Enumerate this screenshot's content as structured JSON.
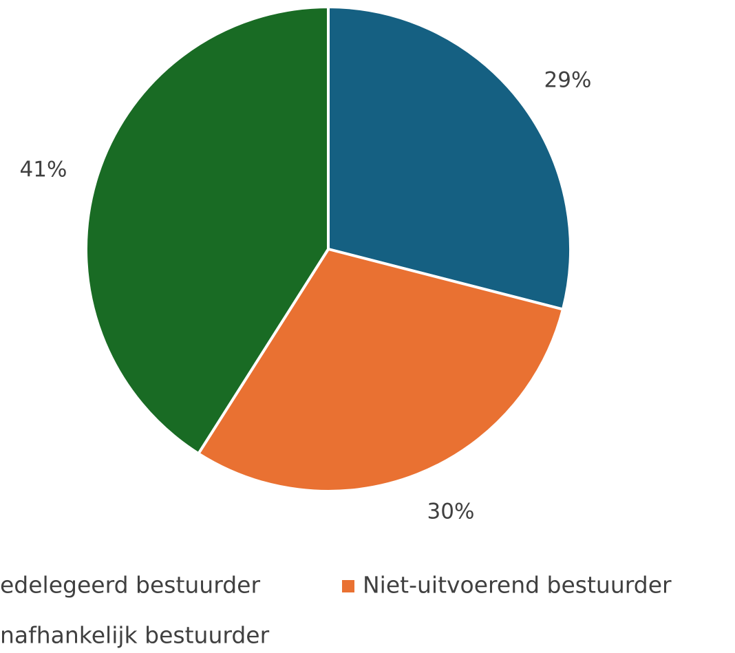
{
  "chart_data": {
    "type": "pie",
    "categories": [
      "edelegeerd bestuurder",
      "Niet-uitvoerend bestuurder",
      "nafhankelijk bestuurder"
    ],
    "values": [
      29,
      30,
      41
    ],
    "value_labels": [
      "29%",
      "30%",
      "41%"
    ],
    "colors": [
      "#156082",
      "#E97132",
      "#196B24"
    ],
    "legend": "bottom"
  }
}
